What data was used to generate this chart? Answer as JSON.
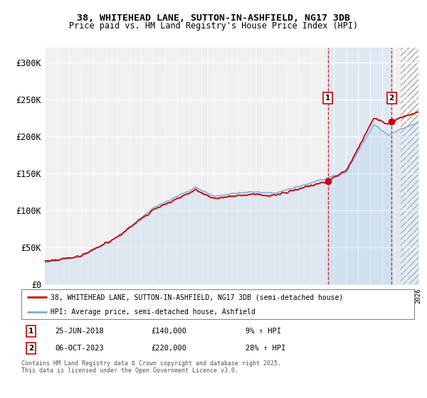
{
  "title_line1": "38, WHITEHEAD LANE, SUTTON-IN-ASHFIELD, NG17 3DB",
  "title_line2": "Price paid vs. HM Land Registry's House Price Index (HPI)",
  "legend_line1": "38, WHITEHEAD LANE, SUTTON-IN-ASHFIELD, NG17 3DB (semi-detached house)",
  "legend_line2": "HPI: Average price, semi-detached house, Ashfield",
  "annotation1_date": "25-JUN-2018",
  "annotation1_price": "£140,000",
  "annotation1_hpi": "9% ↑ HPI",
  "annotation2_date": "06-OCT-2023",
  "annotation2_price": "£220,000",
  "annotation2_hpi": "28% ↑ HPI",
  "footer": "Contains HM Land Registry data © Crown copyright and database right 2025.\nThis data is licensed under the Open Government Licence v3.0.",
  "sale1_year": 2018.49,
  "sale1_price": 140000,
  "sale2_year": 2023.77,
  "sale2_price": 220000,
  "property_color": "#cc0000",
  "hpi_color": "#7aaadd",
  "background_color": "#ffffff",
  "plot_bg_color": "#f0f0f0",
  "ylim": [
    0,
    320000
  ],
  "xlim_start": 1995,
  "xlim_end": 2026,
  "yticks": [
    0,
    50000,
    100000,
    150000,
    200000,
    250000,
    300000
  ],
  "ytick_labels": [
    "£0",
    "£50K",
    "£100K",
    "£150K",
    "£200K",
    "£250K",
    "£300K"
  ],
  "hpi_seed": 42,
  "prop_seed": 77
}
